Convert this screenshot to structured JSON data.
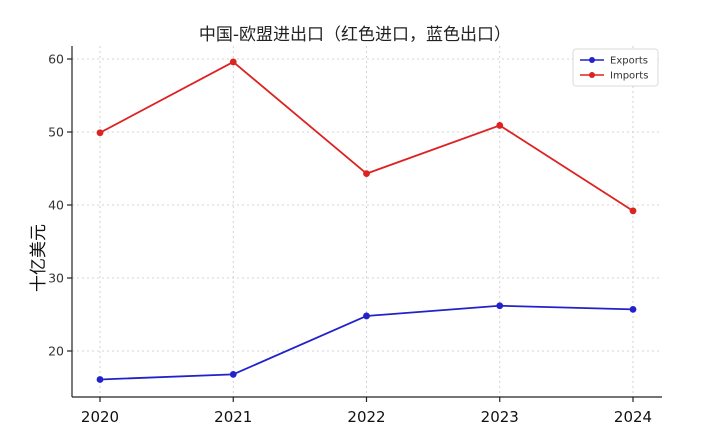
{
  "chart_data": {
    "type": "line",
    "title": "中国-欧盟进出口（红色进口，蓝色出口）",
    "xlabel": "",
    "ylabel": "十亿美元",
    "categories": [
      "2020",
      "2021",
      "2022",
      "2023",
      "2024"
    ],
    "yticks": [
      20,
      30,
      40,
      50,
      60
    ],
    "ylim": [
      14,
      62
    ],
    "grid": true,
    "legend_position": "top-right",
    "series": [
      {
        "name": "Exports",
        "color": "#2222cc",
        "values": [
          16.1,
          16.8,
          24.8,
          26.2,
          25.7
        ]
      },
      {
        "name": "Imports",
        "color": "#dd2222",
        "values": [
          49.9,
          59.6,
          44.3,
          50.9,
          39.2
        ]
      }
    ]
  }
}
